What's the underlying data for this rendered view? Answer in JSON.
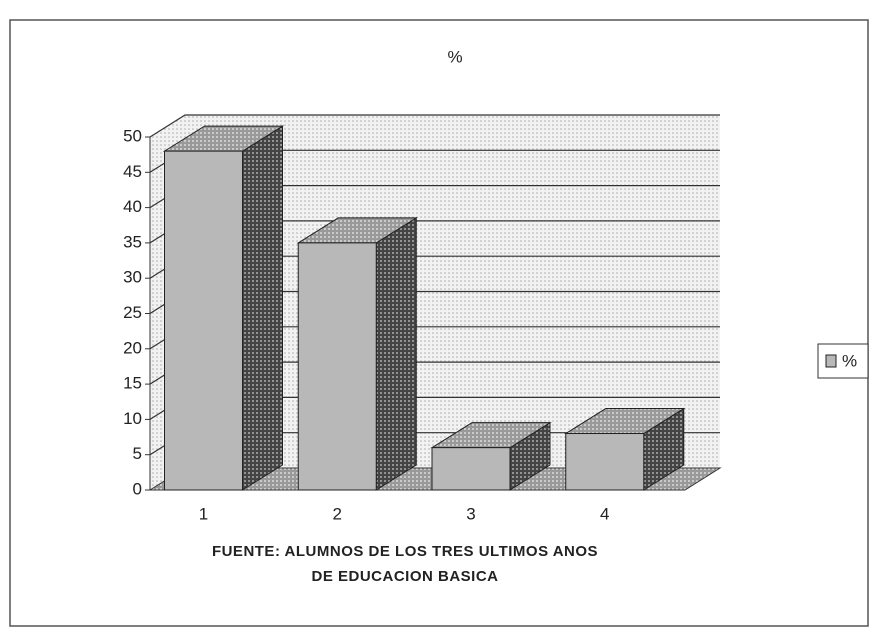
{
  "chart_data": {
    "type": "bar3d",
    "title": "%",
    "categories": [
      "1",
      "2",
      "3",
      "4"
    ],
    "series": [
      {
        "name": "%",
        "color": "#b8b8b8",
        "values": [
          48,
          35,
          6,
          8
        ]
      }
    ],
    "ylim": [
      0,
      50
    ],
    "yticks": [
      0,
      5,
      10,
      15,
      20,
      25,
      30,
      35,
      40,
      45,
      50
    ],
    "grid": true,
    "legend": "right",
    "caption": [
      "FUENTE: ALUMNOS DE LOS TRES ULTIMOS ANOS",
      "DE EDUCACION BASICA"
    ]
  }
}
